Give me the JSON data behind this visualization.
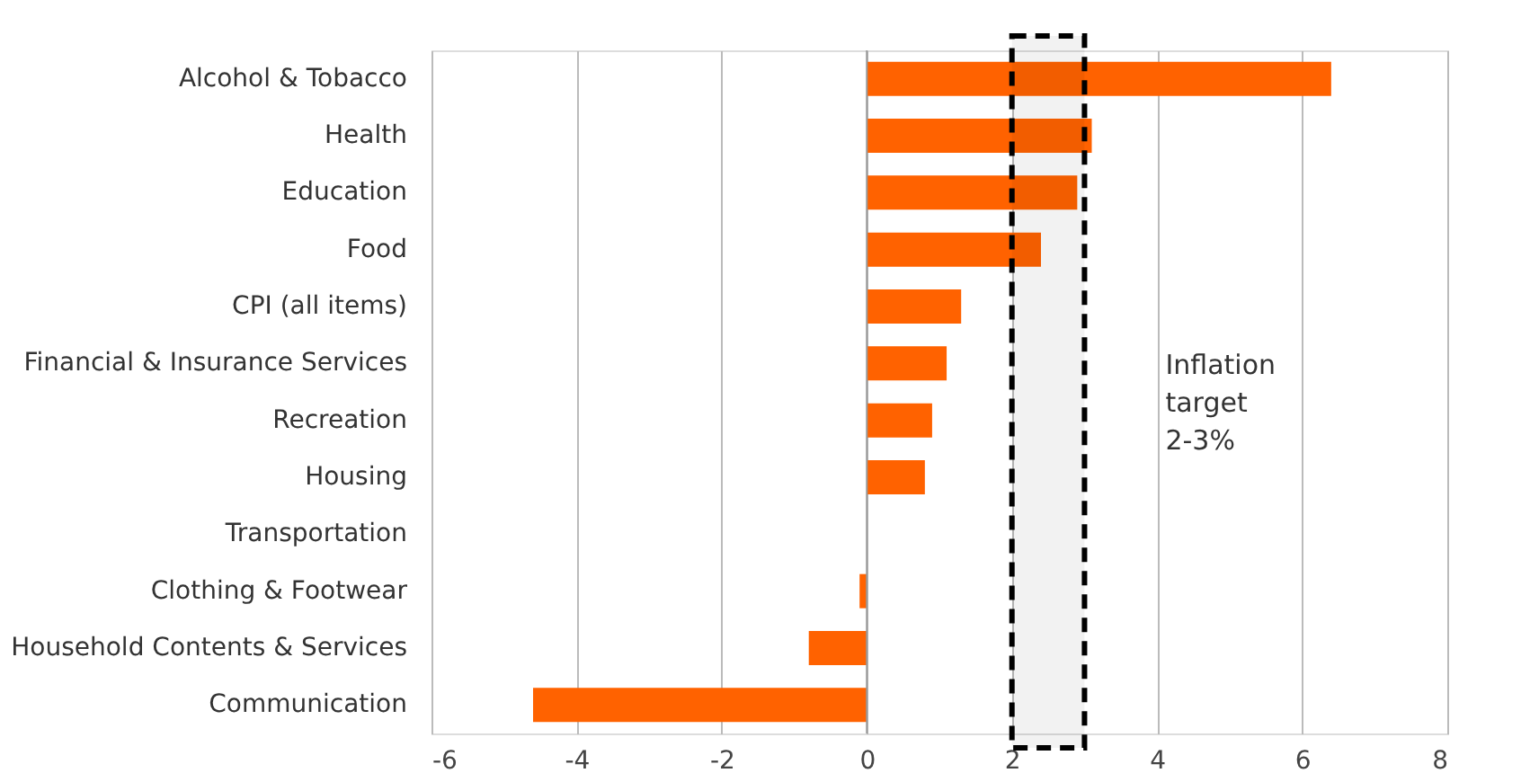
{
  "chart_data": {
    "type": "bar",
    "orientation": "horizontal",
    "categories": [
      "Alcohol & Tobacco",
      "Health",
      "Education",
      "Food",
      "CPI (all items) ",
      "Financial & Insurance Services",
      "Recreation",
      "Housing",
      "Transportation",
      "Clothing & Footwear",
      "Household Contents & Services",
      "Communication"
    ],
    "values": [
      6.4,
      3.1,
      2.9,
      2.4,
      1.3,
      1.1,
      0.9,
      0.8,
      0,
      -0.1,
      -0.8,
      -4.6
    ],
    "color": "#ff6200",
    "xlim": [
      -6,
      8
    ],
    "xticks": [
      -6,
      -4,
      -2,
      0,
      2,
      4,
      6,
      8
    ],
    "grid": "x",
    "bands": [
      {
        "axis": "x",
        "from": 2,
        "to": 3,
        "label": "Inflation\ntarget\n2-3%",
        "color": "#000000"
      }
    ]
  }
}
